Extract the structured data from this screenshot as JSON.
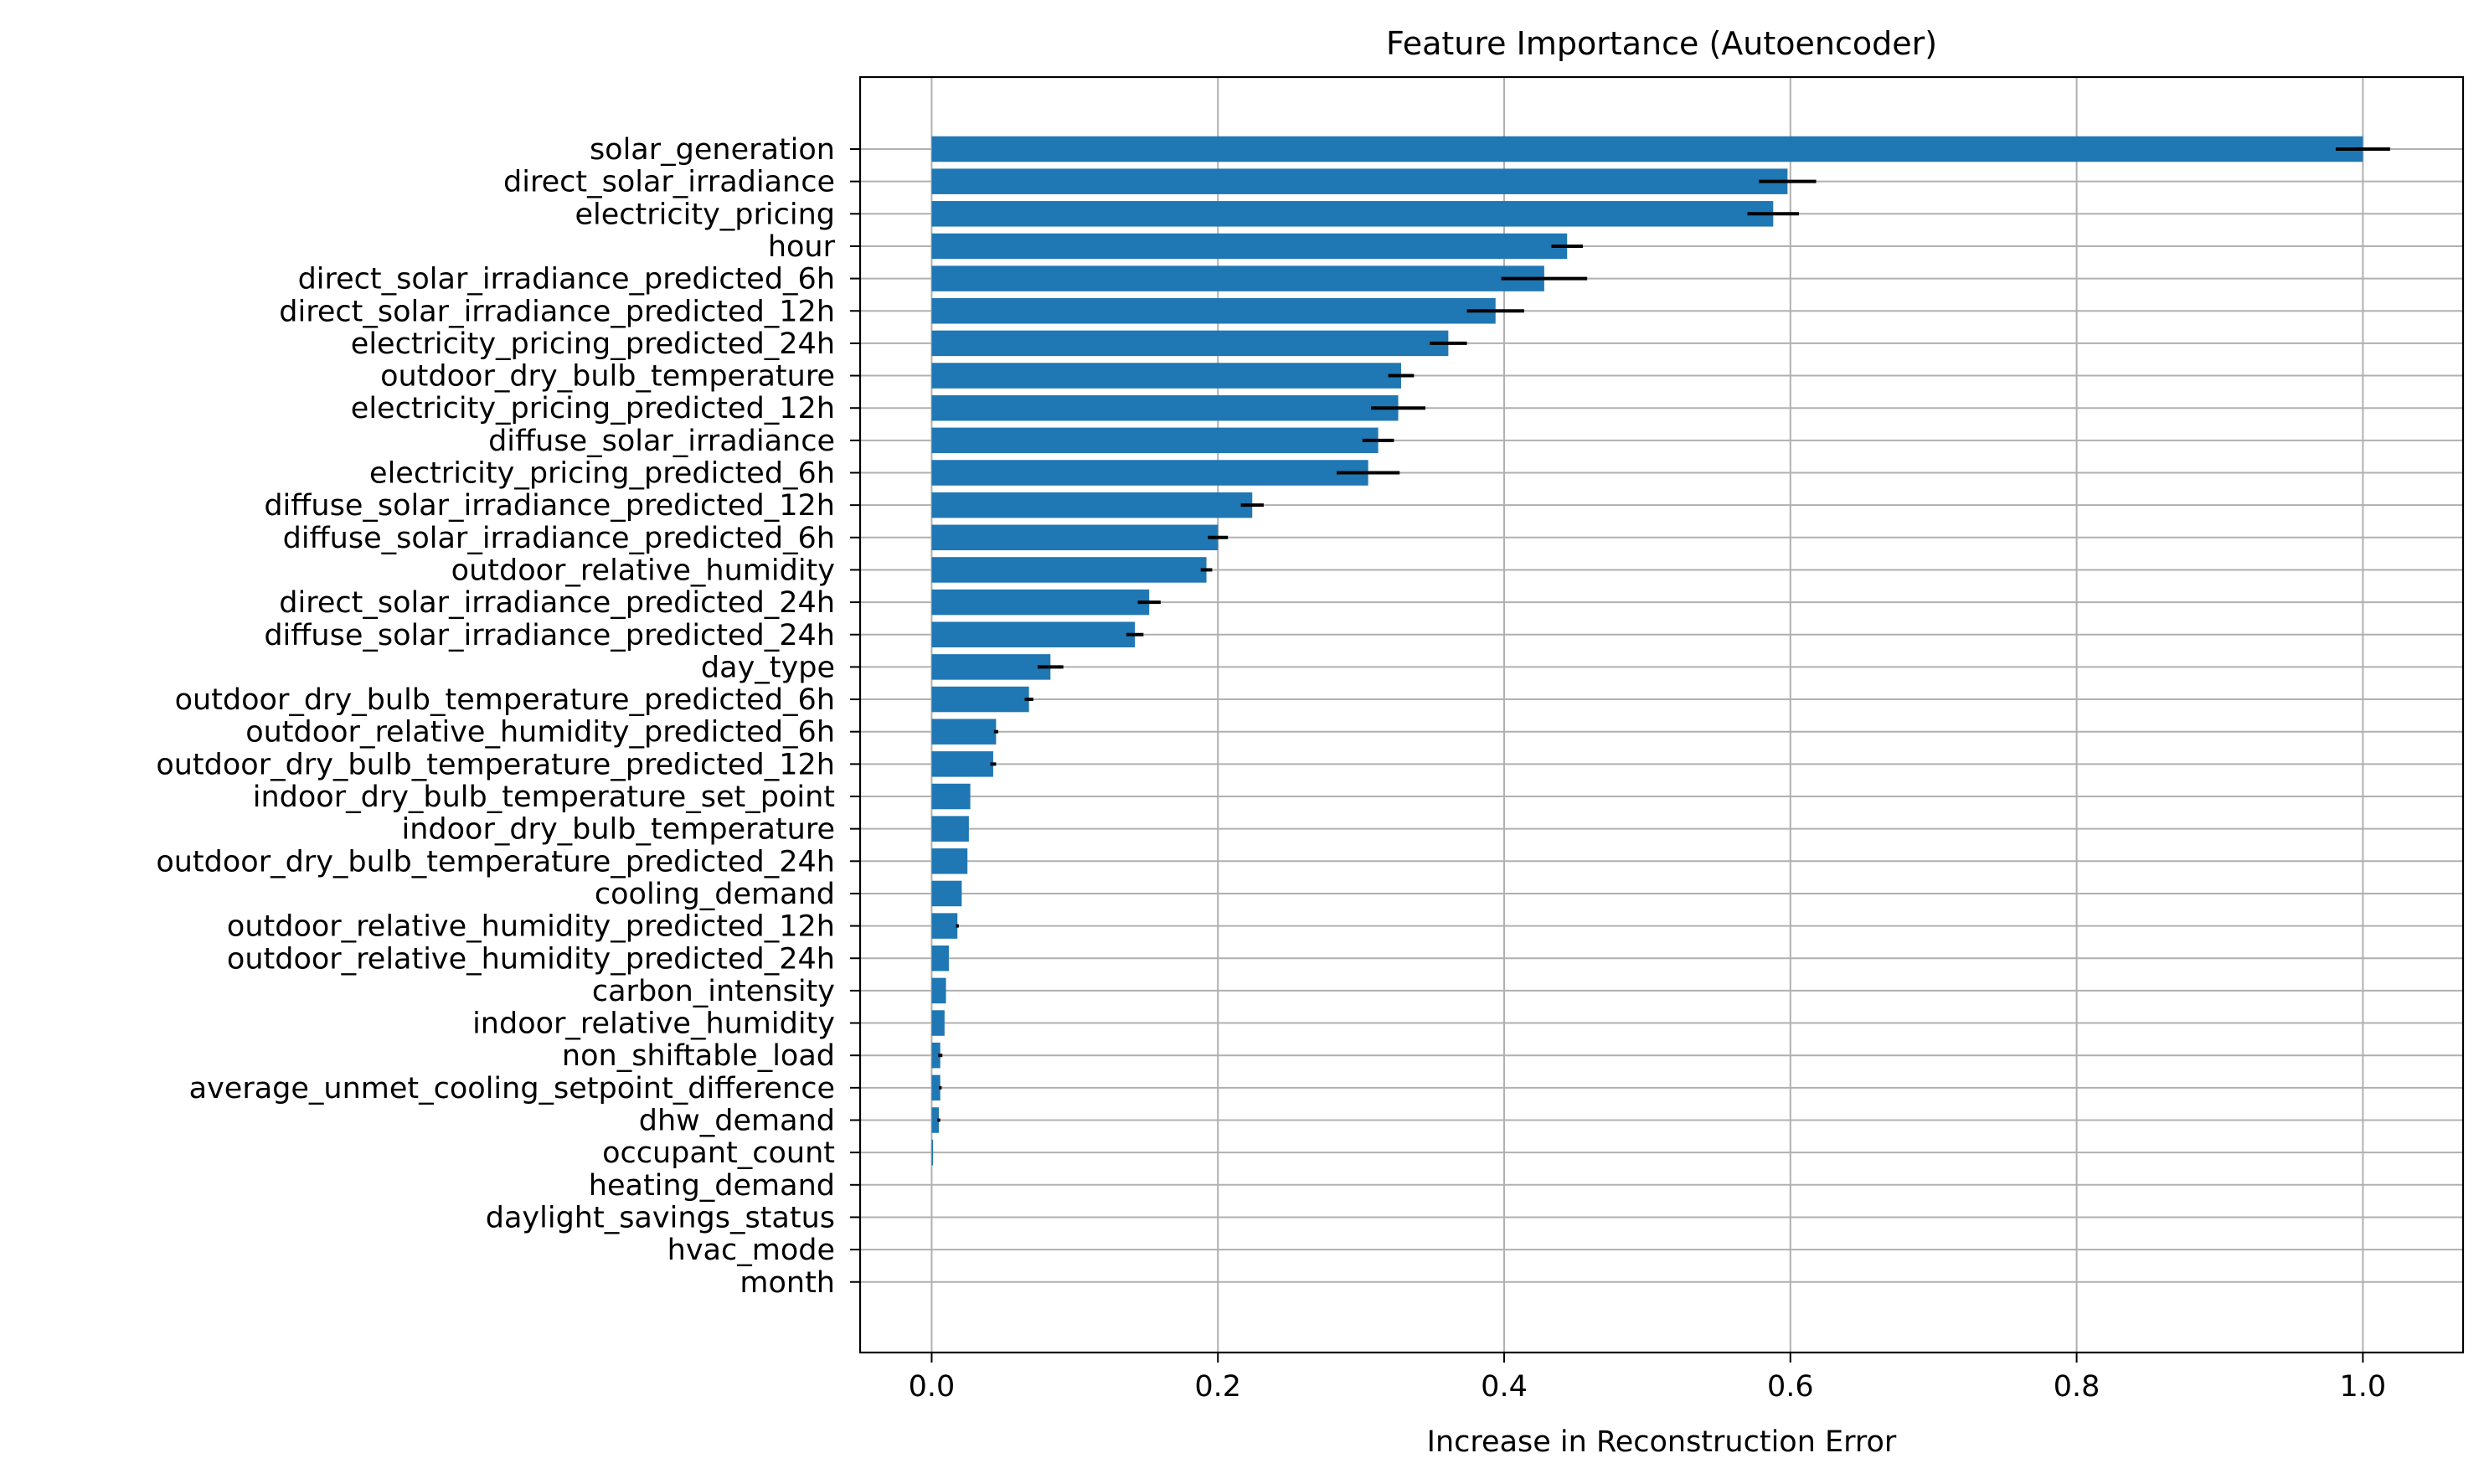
{
  "chart_data": {
    "type": "bar",
    "orientation": "horizontal",
    "title": "Feature Importance (Autoencoder)",
    "xlabel": "Increase in Reconstruction Error",
    "ylabel": "",
    "xlim": [
      -0.05,
      1.07
    ],
    "xticks": [
      0.0,
      0.2,
      0.4,
      0.6,
      0.8,
      1.0
    ],
    "xtick_labels": [
      "0.0",
      "0.2",
      "0.4",
      "0.6",
      "0.8",
      "1.0"
    ],
    "grid": true,
    "colors": {
      "bar": "#1f77b4",
      "error": "#000000",
      "grid": "#b0b0b0"
    },
    "categories": [
      "solar_generation",
      "direct_solar_irradiance",
      "electricity_pricing",
      "hour",
      "direct_solar_irradiance_predicted_6h",
      "direct_solar_irradiance_predicted_12h",
      "electricity_pricing_predicted_24h",
      "outdoor_dry_bulb_temperature",
      "electricity_pricing_predicted_12h",
      "diffuse_solar_irradiance",
      "electricity_pricing_predicted_6h",
      "diffuse_solar_irradiance_predicted_12h",
      "diffuse_solar_irradiance_predicted_6h",
      "outdoor_relative_humidity",
      "direct_solar_irradiance_predicted_24h",
      "diffuse_solar_irradiance_predicted_24h",
      "day_type",
      "outdoor_dry_bulb_temperature_predicted_6h",
      "outdoor_relative_humidity_predicted_6h",
      "outdoor_dry_bulb_temperature_predicted_12h",
      "indoor_dry_bulb_temperature_set_point",
      "indoor_dry_bulb_temperature",
      "outdoor_dry_bulb_temperature_predicted_24h",
      "cooling_demand",
      "outdoor_relative_humidity_predicted_12h",
      "outdoor_relative_humidity_predicted_24h",
      "carbon_intensity",
      "indoor_relative_humidity",
      "non_shiftable_load",
      "average_unmet_cooling_setpoint_difference",
      "dhw_demand",
      "occupant_count",
      "heating_demand",
      "daylight_savings_status",
      "hvac_mode",
      "month"
    ],
    "values": [
      1.0,
      0.598,
      0.588,
      0.444,
      0.428,
      0.394,
      0.361,
      0.328,
      0.326,
      0.312,
      0.305,
      0.224,
      0.2,
      0.192,
      0.152,
      0.142,
      0.083,
      0.068,
      0.045,
      0.043,
      0.027,
      0.026,
      0.025,
      0.021,
      0.018,
      0.012,
      0.01,
      0.009,
      0.006,
      0.006,
      0.005,
      0.001,
      0.0,
      0.0,
      0.0,
      0.0
    ],
    "errors": [
      0.019,
      0.02,
      0.018,
      0.011,
      0.03,
      0.02,
      0.013,
      0.009,
      0.019,
      0.011,
      0.022,
      0.008,
      0.007,
      0.004,
      0.008,
      0.006,
      0.009,
      0.003,
      0.0015,
      0.002,
      0.0,
      0.0,
      0.0,
      0.0,
      0.001,
      0.0,
      0.0,
      0.0,
      0.0015,
      0.001,
      0.001,
      0.0,
      0.0,
      0.0,
      0.0,
      0.0
    ]
  }
}
